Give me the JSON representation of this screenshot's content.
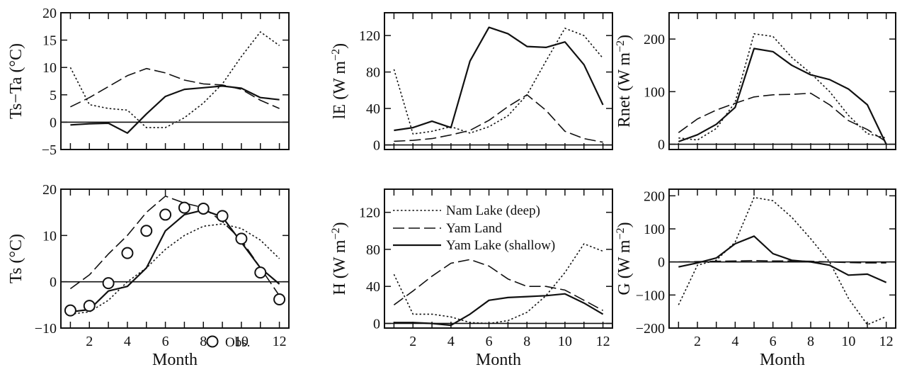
{
  "figure": {
    "legend": {
      "entries": [
        {
          "label": "Nam Lake (deep)",
          "style": "dotted"
        },
        {
          "label": "Yam Land",
          "style": "dashed"
        },
        {
          "label": "Yam Lake (shallow)",
          "style": "solid"
        }
      ],
      "observed_label": "Obs."
    },
    "colors": {
      "line": "#111111",
      "background": "#ffffff"
    }
  },
  "chart_data": [
    {
      "type": "line",
      "ylabel": "Ts−Ta (°C)",
      "xlabel": "",
      "x": [
        1,
        2,
        3,
        4,
        5,
        6,
        7,
        8,
        9,
        10,
        11,
        12
      ],
      "xlim": [
        0.5,
        12.5
      ],
      "ylim": [
        -5,
        20
      ],
      "yticks": [
        -5,
        0,
        5,
        10,
        15,
        20
      ],
      "xticks": [],
      "zero_line": true,
      "series": [
        {
          "name": "Nam Lake (deep)",
          "style": "dotted",
          "values": [
            10,
            3.2,
            2.5,
            2.2,
            -1,
            -1,
            0.8,
            3.5,
            7,
            12,
            16.5,
            14
          ]
        },
        {
          "name": "Yam Land",
          "style": "dashed",
          "values": [
            2.8,
            4.5,
            6.5,
            8.5,
            9.8,
            9,
            7.7,
            7,
            6.8,
            6,
            4,
            2.5
          ]
        },
        {
          "name": "Yam Lake (shallow)",
          "style": "solid",
          "values": [
            -0.5,
            -0.3,
            -0.2,
            -2,
            1.5,
            4.7,
            6,
            6.3,
            6.6,
            6.2,
            4.5,
            4.1
          ]
        }
      ]
    },
    {
      "type": "line",
      "ylabel": "lE (W m⁻²)",
      "xlabel": "",
      "x": [
        1,
        2,
        3,
        4,
        5,
        6,
        7,
        8,
        9,
        10,
        11,
        12
      ],
      "xlim": [
        0.5,
        12.5
      ],
      "ylim": [
        -5,
        145
      ],
      "yticks": [
        0,
        40,
        80,
        120
      ],
      "xticks": [],
      "zero_line": true,
      "series": [
        {
          "name": "Nam Lake (deep)",
          "style": "dotted",
          "values": [
            83,
            12,
            15,
            20,
            13,
            20,
            32,
            55,
            92,
            128,
            120,
            95
          ]
        },
        {
          "name": "Yam Land",
          "style": "dashed",
          "values": [
            4,
            5,
            7,
            11,
            16,
            27,
            42,
            55,
            38,
            15,
            7,
            3
          ]
        },
        {
          "name": "Yam Lake (shallow)",
          "style": "solid",
          "values": [
            16,
            19,
            26,
            19,
            92,
            129,
            122,
            108,
            107,
            113,
            88,
            44
          ]
        }
      ]
    },
    {
      "type": "line",
      "ylabel": "Rnet (W m⁻²)",
      "xlabel": "",
      "x": [
        1,
        2,
        3,
        4,
        5,
        6,
        7,
        8,
        9,
        10,
        11,
        12
      ],
      "xlim": [
        0.5,
        12.5
      ],
      "ylim": [
        -10,
        250
      ],
      "yticks": [
        0,
        100,
        200
      ],
      "xticks": [],
      "zero_line": true,
      "series": [
        {
          "name": "Nam Lake (deep)",
          "style": "dotted",
          "values": [
            12,
            8,
            30,
            80,
            210,
            205,
            165,
            135,
            100,
            55,
            20,
            12
          ]
        },
        {
          "name": "Yam Land",
          "style": "dashed",
          "values": [
            22,
            48,
            65,
            78,
            90,
            94,
            95,
            97,
            75,
            45,
            28,
            5
          ]
        },
        {
          "name": "Yam Lake (shallow)",
          "style": "solid",
          "values": [
            5,
            18,
            38,
            70,
            182,
            176,
            150,
            132,
            123,
            105,
            75,
            0
          ]
        }
      ]
    },
    {
      "type": "line",
      "ylabel": "Ts (°C)",
      "xlabel": "Month",
      "x": [
        1,
        2,
        3,
        4,
        5,
        6,
        7,
        8,
        9,
        10,
        11,
        12
      ],
      "xlim": [
        0.5,
        12.5
      ],
      "ylim": [
        -10,
        20
      ],
      "yticks": [
        -10,
        0,
        10,
        20
      ],
      "xticks": [
        2,
        4,
        6,
        8,
        10,
        12
      ],
      "zero_line": true,
      "series": [
        {
          "name": "Nam Lake (deep)",
          "style": "dotted",
          "values": [
            -7,
            -6.5,
            -4,
            0,
            3,
            7,
            10,
            12,
            12.5,
            11.5,
            9,
            5
          ]
        },
        {
          "name": "Yam Land",
          "style": "dashed",
          "values": [
            -1.5,
            1.5,
            6,
            10,
            15,
            18.5,
            17,
            16,
            13,
            9,
            3,
            -3
          ]
        },
        {
          "name": "Yam Lake (shallow)",
          "style": "solid",
          "values": [
            -6.5,
            -6,
            -2,
            -1,
            3,
            11,
            14.5,
            15.5,
            14,
            8.5,
            3,
            -0.5
          ]
        }
      ],
      "observations": {
        "name": "Obs.",
        "x": [
          1,
          2,
          3,
          4,
          5,
          6,
          7,
          8,
          9,
          10,
          11,
          12
        ],
        "values": [
          -6.2,
          -5.2,
          -0.3,
          6.2,
          11,
          14.5,
          16,
          15.8,
          14.2,
          9.3,
          2,
          -3.8
        ]
      }
    },
    {
      "type": "line",
      "ylabel": "H (W m⁻²)",
      "xlabel": "Month",
      "x": [
        1,
        2,
        3,
        4,
        5,
        6,
        7,
        8,
        9,
        10,
        11,
        12
      ],
      "xlim": [
        0.5,
        12.5
      ],
      "ylim": [
        -5,
        145
      ],
      "yticks": [
        0,
        40,
        80,
        120
      ],
      "xticks": [
        2,
        4,
        6,
        8,
        10,
        12
      ],
      "zero_line": true,
      "series": [
        {
          "name": "Nam Lake (deep)",
          "style": "dotted",
          "values": [
            53,
            10,
            10,
            7,
            1,
            0,
            3,
            12,
            30,
            55,
            86,
            78
          ]
        },
        {
          "name": "Yam Land",
          "style": "dashed",
          "values": [
            20,
            35,
            51,
            65,
            69,
            62,
            48,
            40,
            40,
            36,
            25,
            14
          ]
        },
        {
          "name": "Yam Lake (shallow)",
          "style": "solid",
          "values": [
            1,
            1,
            0,
            -2,
            10,
            25,
            28,
            29,
            30,
            32,
            22,
            10
          ]
        }
      ]
    },
    {
      "type": "line",
      "ylabel": "G (W m⁻²)",
      "xlabel": "Month",
      "x": [
        1,
        2,
        3,
        4,
        5,
        6,
        7,
        8,
        9,
        10,
        11,
        12
      ],
      "xlim": [
        0.5,
        12.5
      ],
      "ylim": [
        -200,
        220
      ],
      "yticks": [
        -200,
        -100,
        0,
        100,
        200
      ],
      "xticks": [
        2,
        4,
        6,
        8,
        10,
        12
      ],
      "zero_line": true,
      "series": [
        {
          "name": "Nam Lake (deep)",
          "style": "dotted",
          "values": [
            -130,
            -10,
            5,
            60,
            195,
            185,
            135,
            70,
            0,
            -110,
            -190,
            -165
          ]
        },
        {
          "name": "Yam Land",
          "style": "dashed",
          "values": [
            0,
            1,
            2,
            3,
            4,
            3,
            3,
            2,
            0,
            -2,
            -3,
            -3
          ]
        },
        {
          "name": "Yam Lake (shallow)",
          "style": "solid",
          "values": [
            -15,
            -3,
            12,
            55,
            78,
            25,
            5,
            0,
            -10,
            -40,
            -37,
            -62
          ]
        }
      ]
    }
  ]
}
